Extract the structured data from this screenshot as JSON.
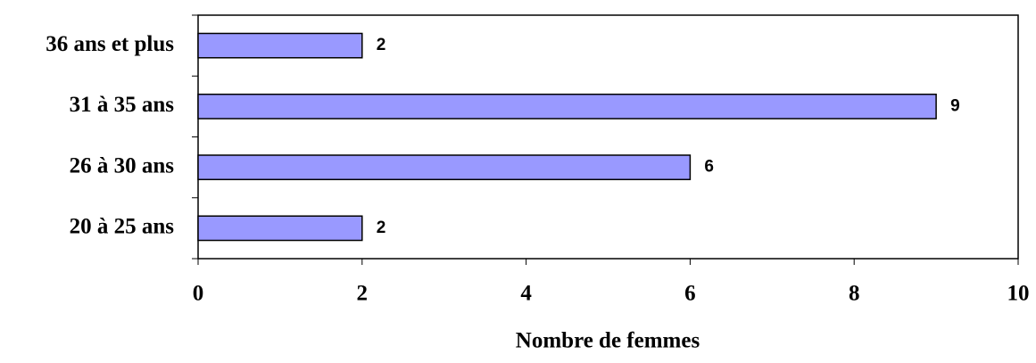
{
  "chart_data": {
    "type": "bar",
    "orientation": "horizontal",
    "x_axis_label": "Nombre de femmes",
    "categories": [
      "20 à 25 ans",
      "26 à 30 ans",
      "31 à 35 ans",
      "36 ans et plus"
    ],
    "values": [
      2,
      6,
      9,
      2
    ],
    "color": "#9999ff",
    "xlim": [
      0,
      10
    ],
    "xticks": [
      0,
      2,
      4,
      6,
      8,
      10
    ],
    "grid": false
  }
}
